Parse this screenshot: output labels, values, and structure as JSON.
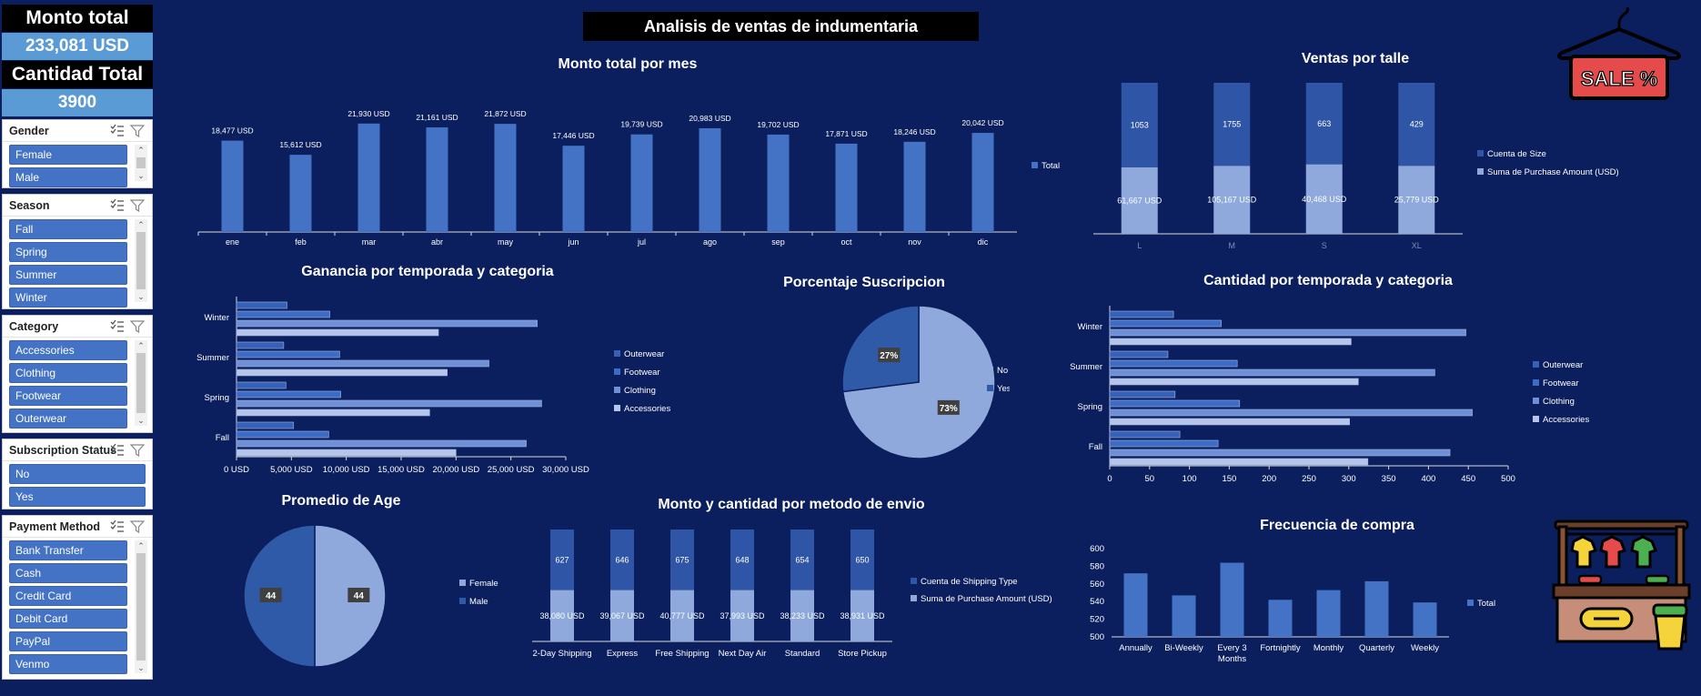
{
  "dashboard_title": "Analisis de ventas  de indumentaria",
  "kpis": {
    "monto_label": "Monto total",
    "monto_value": "233,081 USD",
    "cantidad_label": "Cantidad Total",
    "cantidad_value": "3900"
  },
  "slicers": {
    "gender": {
      "title": "Gender",
      "items": [
        "Female",
        "Male"
      ]
    },
    "season": {
      "title": "Season",
      "items": [
        "Fall",
        "Spring",
        "Summer",
        "Winter"
      ]
    },
    "category": {
      "title": "Category",
      "items": [
        "Accessories",
        "Clothing",
        "Footwear",
        "Outerwear"
      ]
    },
    "subscription": {
      "title": "Subscription Status",
      "items": [
        "No",
        "Yes"
      ]
    },
    "payment": {
      "title": "Payment Method",
      "items": [
        "Bank Transfer",
        "Cash",
        "Credit Card",
        "Debit Card",
        "PayPal",
        "Venmo"
      ]
    }
  },
  "colors": {
    "background": "#0b1f5e",
    "bar": "#4472c4",
    "bar_dark": "#2f56a6",
    "bar_light": "#8fa9dc",
    "slicer_item": "#4472c4",
    "kpi_value_bg": "#5b9bd5"
  },
  "icons": [
    "multiselect-icon",
    "filter-icon",
    "sale-tag-icon",
    "clothing-shop-stall-icon"
  ],
  "sale_tag_text": "SALE %",
  "chart_data": [
    {
      "id": "monthly",
      "type": "bar",
      "title": "Monto total por mes",
      "categories": [
        "ene",
        "feb",
        "mar",
        "abr",
        "may",
        "jun",
        "jul",
        "ago",
        "sep",
        "oct",
        "nov",
        "dic"
      ],
      "values": [
        18477,
        15612,
        21930,
        21161,
        21872,
        17446,
        19739,
        20983,
        19702,
        17871,
        18246,
        20042
      ],
      "data_labels": [
        "18,477 USD",
        "15,612 USD",
        "21,930 USD",
        "21,161 USD",
        "21,872 USD",
        "17,446 USD",
        "19,739 USD",
        "20,983 USD",
        "19,702 USD",
        "17,871 USD",
        "18,246 USD",
        "20,042 USD"
      ],
      "series": [
        {
          "name": "Total"
        }
      ],
      "ylim": [
        0,
        25000
      ],
      "legend": "right"
    },
    {
      "id": "size",
      "type": "bar",
      "stacked": true,
      "title": "Ventas por talle",
      "categories": [
        "L",
        "M",
        "S",
        "XL"
      ],
      "series": [
        {
          "name": "Cuenta de Size",
          "values": [
            1053,
            1755,
            663,
            429
          ],
          "labels": [
            "1053",
            "1755",
            "663",
            "429"
          ]
        },
        {
          "name": "Suma de Purchase Amount (USD)",
          "values": [
            61667,
            105167,
            40468,
            25779
          ],
          "labels": [
            "61,667 USD",
            "105,167 USD",
            "40,468 USD",
            "25,779 USD"
          ]
        }
      ],
      "lower_share": [
        0.44,
        0.45,
        0.46,
        0.45
      ],
      "legend": "right"
    },
    {
      "id": "profit_season",
      "type": "bar",
      "orientation": "horizontal",
      "title": "Ganancia por temporada y categoria",
      "categories": [
        "Fall",
        "Spring",
        "Summer",
        "Winter"
      ],
      "series": [
        {
          "name": "Outerwear",
          "values": [
            5200,
            4500,
            4300,
            4600
          ]
        },
        {
          "name": "Footwear",
          "values": [
            8400,
            9500,
            9400,
            8500
          ]
        },
        {
          "name": "Clothing",
          "values": [
            26400,
            27800,
            23000,
            27400
          ]
        },
        {
          "name": "Accessories",
          "values": [
            20000,
            17600,
            19200,
            18400
          ]
        }
      ],
      "xticks": [
        "0 USD",
        "5,000 USD",
        "10,000 USD",
        "15,000 USD",
        "20,000 USD",
        "25,000 USD",
        "30,000 USD"
      ],
      "xlim": [
        0,
        30000
      ],
      "legend": "right"
    },
    {
      "id": "subscription",
      "type": "pie",
      "title": "Porcentaje Suscripcion",
      "categories": [
        "No",
        "Yes"
      ],
      "values": [
        73,
        27
      ],
      "labels": [
        "73%",
        "27%"
      ],
      "legend": "right"
    },
    {
      "id": "qty_season",
      "type": "bar",
      "orientation": "horizontal",
      "title": "Cantidad por temporada y categoria",
      "categories": [
        "Fall",
        "Spring",
        "Summer",
        "Winter"
      ],
      "series": [
        {
          "name": "Outerwear",
          "values": [
            88,
            82,
            73,
            80
          ]
        },
        {
          "name": "Footwear",
          "values": [
            136,
            163,
            160,
            140
          ]
        },
        {
          "name": "Clothing",
          "values": [
            427,
            455,
            408,
            447
          ]
        },
        {
          "name": "Accessories",
          "values": [
            324,
            301,
            312,
            303
          ]
        }
      ],
      "xticks": [
        "0",
        "50",
        "100",
        "150",
        "200",
        "250",
        "300",
        "350",
        "400",
        "450",
        "500"
      ],
      "xlim": [
        0,
        500
      ],
      "legend": "right"
    },
    {
      "id": "age",
      "type": "pie",
      "title": "Promedio de Age",
      "categories": [
        "Female",
        "Male"
      ],
      "values": [
        44,
        44
      ],
      "labels": [
        "44",
        "44"
      ],
      "legend": "right"
    },
    {
      "id": "shipping",
      "type": "bar",
      "stacked": true,
      "title": "Monto y cantidad por  metodo de envio",
      "categories": [
        "2-Day Shipping",
        "Express",
        "Free Shipping",
        "Next Day Air",
        "Standard",
        "Store Pickup"
      ],
      "series": [
        {
          "name": "Cuenta de Shipping Type",
          "values": [
            627,
            646,
            675,
            648,
            654,
            650
          ],
          "labels": [
            "627",
            "646",
            "675",
            "648",
            "654",
            "650"
          ]
        },
        {
          "name": "Suma de Purchase Amount (USD)",
          "values": [
            38080,
            39067,
            40777,
            37993,
            38233,
            38931
          ],
          "labels": [
            "38,080 USD",
            "39,067 USD",
            "40,777 USD",
            "37,993 USD",
            "38,233 USD",
            "38,931 USD"
          ]
        }
      ],
      "lower_share": [
        0.54,
        0.54,
        0.54,
        0.54,
        0.54,
        0.54
      ],
      "legend": "right"
    },
    {
      "id": "frequency",
      "type": "bar",
      "title": "Frecuencia de compra",
      "categories": [
        "Annually",
        "Bi-Weekly",
        "Every 3\nMonths",
        "Fortnightly",
        "Monthly",
        "Quarterly",
        "Weekly"
      ],
      "values": [
        572,
        547,
        584,
        542,
        553,
        563,
        539
      ],
      "series": [
        {
          "name": "Total"
        }
      ],
      "yticks": [
        "500",
        "520",
        "540",
        "560",
        "580",
        "600"
      ],
      "ylim": [
        500,
        600
      ],
      "legend": "right"
    }
  ]
}
